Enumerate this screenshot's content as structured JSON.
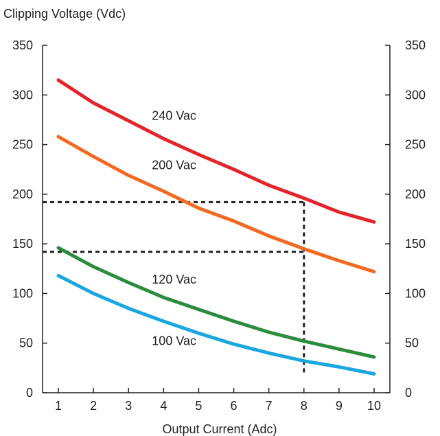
{
  "chart_data": {
    "type": "line",
    "title": "",
    "ylabel": "Clipping Voltage (Vdc)",
    "xlabel": "Output Current (Adc)",
    "xlim": [
      0.55,
      10.45
    ],
    "ylim": [
      0,
      350
    ],
    "x_ticks": [
      1,
      2,
      3,
      4,
      5,
      6,
      7,
      8,
      9,
      10
    ],
    "y_ticks": [
      0,
      50,
      100,
      150,
      200,
      250,
      300,
      350
    ],
    "y_axis_right": true,
    "grid": false,
    "legend": "none",
    "x": [
      1,
      2,
      3,
      4,
      5,
      6,
      7,
      8,
      9,
      10
    ],
    "series": [
      {
        "name": "240 Vac",
        "color": "#e3242b",
        "label_at": [
          4.3,
          275
        ],
        "values": [
          315,
          292,
          274,
          256,
          240,
          225,
          209,
          196,
          182,
          172
        ]
      },
      {
        "name": "200 Vac",
        "color": "#f26a21",
        "label_at": [
          4.3,
          225
        ],
        "values": [
          258,
          238,
          219,
          203,
          186,
          173,
          158,
          145,
          133,
          122
        ]
      },
      {
        "name": "120 Vac",
        "color": "#2a8c3c",
        "label_at": [
          4.3,
          110
        ],
        "values": [
          146,
          127,
          111,
          96,
          84,
          72,
          61,
          52,
          44,
          36
        ]
      },
      {
        "name": "100 Vac",
        "color": "#1aa7e0",
        "label_at": [
          4.3,
          48
        ],
        "values": [
          118,
          100,
          85,
          72,
          60,
          49,
          40,
          32,
          26,
          19
        ]
      }
    ],
    "reference_lines": [
      {
        "style": "dashed",
        "color": "#231f20",
        "points": [
          [
            0.55,
            192
          ],
          [
            8,
            192
          ]
        ]
      },
      {
        "style": "dashed",
        "color": "#231f20",
        "points": [
          [
            0.55,
            142
          ],
          [
            8,
            142
          ]
        ]
      },
      {
        "style": "dashed",
        "color": "#231f20",
        "points": [
          [
            8,
            192
          ],
          [
            8,
            18
          ]
        ]
      }
    ]
  }
}
